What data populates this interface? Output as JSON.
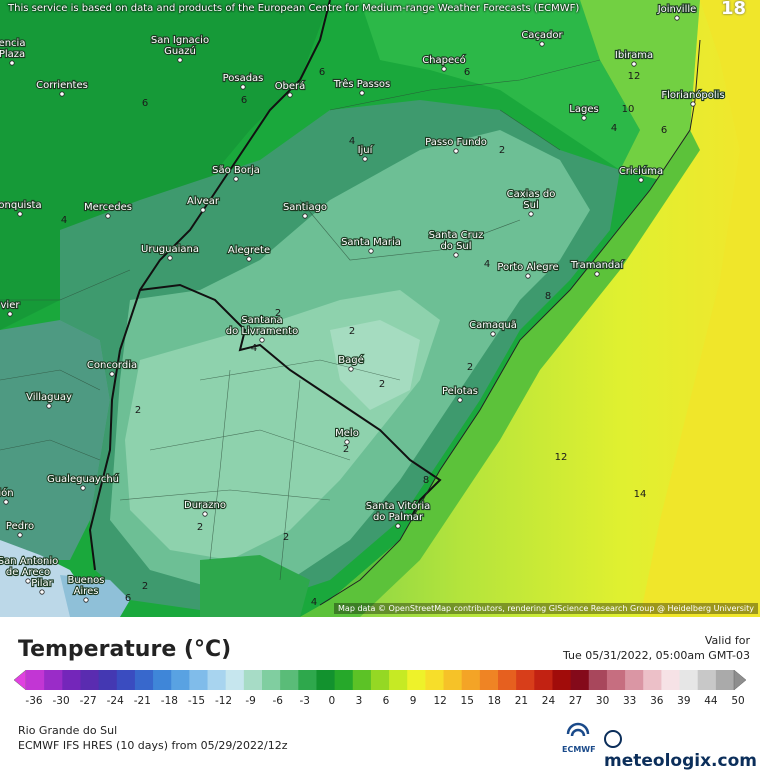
{
  "map": {
    "disclaimer": "This service is based on data and products of the European Centre for Medium-range Weather Forecasts (ECMWF)",
    "frame_number": "18",
    "attribution": "Map data © OpenStreetMap contributors, rendering GIScience Research Group @ Heidelberg University",
    "cities": [
      {
        "name": "Joinville"
      },
      {
        "name": "San Ignacio\nGuazú"
      },
      {
        "name": "Caçador"
      },
      {
        "name": "Chapecó"
      },
      {
        "name": "Ibirama"
      },
      {
        "name": "Corrientes"
      },
      {
        "name": "Posadas"
      },
      {
        "name": "Oberá"
      },
      {
        "name": "Três Passos"
      },
      {
        "name": "Florianópolis"
      },
      {
        "name": "Lages"
      },
      {
        "name": "Ijuí"
      },
      {
        "name": "Passo Fundo"
      },
      {
        "name": "São Borja"
      },
      {
        "name": "Criciúma"
      },
      {
        "name": "Alvear"
      },
      {
        "name": "Mercedes"
      },
      {
        "name": "Santiago"
      },
      {
        "name": "Caxias do\nSul"
      },
      {
        "name": "Santa Maria"
      },
      {
        "name": "Santa Cruz\ndo Sul"
      },
      {
        "name": "Uruguaiana"
      },
      {
        "name": "Alegrete"
      },
      {
        "name": "Porto Alegre"
      },
      {
        "name": "Tramandaí"
      },
      {
        "name": "Santana\ndo Livramento"
      },
      {
        "name": "Camaquã"
      },
      {
        "name": "Bagé"
      },
      {
        "name": "Concordia"
      },
      {
        "name": "Pelotas"
      },
      {
        "name": "Villaguay"
      },
      {
        "name": "Melo"
      },
      {
        "name": "Gualeguaychú"
      },
      {
        "name": "Durazno"
      },
      {
        "name": "Santa Vitória\ndo Palmar"
      },
      {
        "name": "Pedro"
      },
      {
        "name": "San Antonio\nde Areco"
      },
      {
        "name": "Buenos\nAires"
      },
      {
        "name": "Pilar"
      },
      {
        "name": "encia\nPlaza"
      },
      {
        "name": "onquista"
      },
      {
        "name": "vier"
      },
      {
        "name": "ión"
      }
    ],
    "isotherm_labels": [
      "6",
      "12",
      "6",
      "6",
      "10",
      "6",
      "4",
      "4",
      "2",
      "4",
      "2",
      "4",
      "2",
      "2",
      "2",
      "2",
      "2",
      "2",
      "2",
      "4",
      "8",
      "2",
      "12",
      "14",
      "4",
      "6",
      "6",
      "8"
    ]
  },
  "legend": {
    "title": "Temperature (°C)",
    "valid_label": "Valid for",
    "valid_time": "Tue 05/31/2022, 05:00am GMT-03",
    "ticks": [
      "-36",
      "-30",
      "-27",
      "-24",
      "-21",
      "-18",
      "-15",
      "-12",
      "-9",
      "-6",
      "-3",
      "0",
      "3",
      "6",
      "9",
      "12",
      "15",
      "18",
      "21",
      "24",
      "27",
      "30",
      "33",
      "36",
      "39",
      "44",
      "50"
    ],
    "colors": [
      "#e040e0",
      "#c236d4",
      "#9a2cc8",
      "#7426ba",
      "#5a2cb0",
      "#4438b2",
      "#3a4cc0",
      "#3868cc",
      "#3f86d8",
      "#59a2e2",
      "#80bcea",
      "#a8d4ef",
      "#c6e6ee",
      "#a7dcc6",
      "#80cea0",
      "#5abc78",
      "#2ea84c",
      "#12922e",
      "#26a82a",
      "#5cc226",
      "#95d824",
      "#c6ea24",
      "#eef22a",
      "#f7de2a",
      "#f6c228",
      "#f4a426",
      "#ef8424",
      "#e6601f",
      "#d83e1a",
      "#c22212",
      "#a10c0a",
      "#840a1a",
      "#a8475c",
      "#c66e80",
      "#da96a4",
      "#ecc0c8",
      "#f6e2e6",
      "#e6e6e6",
      "#c8c8c8",
      "#aaaaaa",
      "#8e8e8e"
    ]
  },
  "footer": {
    "region": "Rio Grande do Sul",
    "model_run": "ECMWF IFS HRES (10 days) from 05/29/2022/12z",
    "ecmwf_label": "ECMWF",
    "brand": "meteologix.com"
  }
}
